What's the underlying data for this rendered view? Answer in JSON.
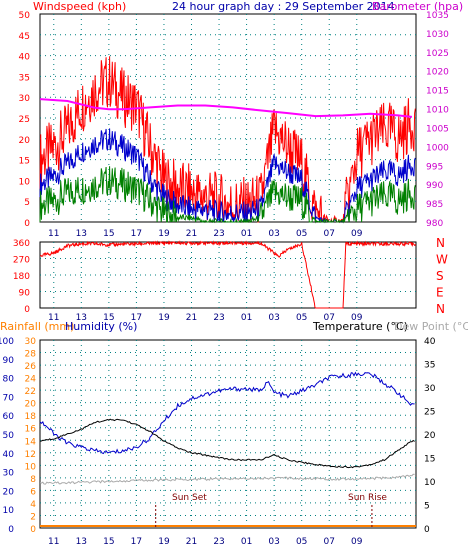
{
  "header": {
    "windspeed_label": "Windspeed (kph)",
    "graph_title": "24 hour graph day : 29 September 2014",
    "barometer_label": "Barometer (hpa)"
  },
  "bottom_header": {
    "rainfall_label": "Rainfall (mm)",
    "humidity_label": "Humidity (%)",
    "temperature_label": "Temperature (°C)",
    "dewpoint_label": "Dew Point (°C)"
  },
  "annotations": {
    "sun_set": "Sun Set",
    "sun_rise": "Sun Rise"
  },
  "colors": {
    "gust": "#ff0000",
    "average": "#0000cc",
    "wind_low": "#008000",
    "barometer": "#ff00ff",
    "direction": "#ff0000",
    "humidity": "#0000cc",
    "temperature": "#000000",
    "dewpoint": "#aaaaaa",
    "rain": "#ff8000",
    "left_axis": "#ff0000",
    "right_axis": "#cc00cc",
    "blue_axis": "#0000aa",
    "temp_axis": "#000000",
    "grid": "#008080"
  },
  "chart_data": [
    {
      "type": "line",
      "title": "24 hour graph day : 29 September 2014",
      "x_hours": [
        "11",
        "13",
        "15",
        "17",
        "19",
        "21",
        "23",
        "01",
        "03",
        "05",
        "07",
        "09"
      ],
      "ylabel_left": "Windspeed (kph)",
      "ylabel_right": "Barometer (hpa)",
      "ylim_left": [
        0,
        50
      ],
      "ylim_right": [
        980,
        1035
      ],
      "yticks_left": [
        "0",
        "5",
        "10",
        "15",
        "20",
        "25",
        "30",
        "35",
        "40",
        "45",
        "50"
      ],
      "yticks_right": [
        "980",
        "985",
        "990",
        "995",
        "1000",
        "1005",
        "1010",
        "1015",
        "1020",
        "1025",
        "1030",
        "1035"
      ],
      "series": [
        {
          "name": "Windspeed (kph)",
          "kind": "gust",
          "x": [
            10,
            11,
            12,
            13,
            14,
            15,
            16,
            17,
            18,
            19,
            20,
            21,
            22,
            23,
            24,
            25,
            26,
            27,
            28,
            29,
            30,
            31,
            32,
            33,
            34,
            35,
            35.5,
            36,
            37
          ],
          "values": [
            15,
            18,
            22,
            28,
            32,
            34,
            30,
            28,
            18,
            10,
            8,
            7,
            6,
            5,
            4,
            4,
            5,
            22,
            18,
            14,
            2,
            0,
            0,
            16,
            20,
            22,
            22,
            20,
            24
          ]
        },
        {
          "name": "average",
          "kind": "average",
          "x": [
            10,
            11,
            12,
            13,
            14,
            15,
            16,
            17,
            18,
            19,
            20,
            21,
            22,
            23,
            24,
            25,
            26,
            27,
            28,
            29,
            30,
            31,
            32,
            33,
            34,
            35,
            35.5,
            36,
            37
          ],
          "values": [
            9,
            11,
            14,
            17,
            19,
            20,
            18,
            16,
            10,
            6,
            4,
            3,
            3,
            2,
            2,
            2,
            3,
            14,
            12,
            10,
            1,
            0,
            0,
            8,
            10,
            12,
            12,
            11,
            14
          ]
        },
        {
          "name": "low",
          "kind": "low",
          "x": [
            10,
            11,
            12,
            13,
            14,
            15,
            16,
            17,
            18,
            19,
            20,
            21,
            22,
            23,
            24,
            25,
            26,
            27,
            28,
            29,
            30,
            31,
            32,
            33,
            34,
            35,
            35.5,
            36,
            37
          ],
          "values": [
            4,
            5,
            7,
            8,
            9,
            10,
            9,
            8,
            5,
            2,
            1,
            1,
            0,
            0,
            0,
            0,
            1,
            7,
            6,
            5,
            0,
            0,
            0,
            3,
            5,
            6,
            6,
            5,
            7
          ]
        },
        {
          "name": "Barometer (hpa)",
          "axis": "right",
          "x": [
            10,
            12,
            14,
            15,
            16,
            18,
            20,
            22,
            24,
            26,
            28,
            30,
            32,
            34,
            36,
            37
          ],
          "values": [
            1012.5,
            1012,
            1010.2,
            1009.8,
            1009.8,
            1010.3,
            1010.8,
            1010.8,
            1010.3,
            1009.5,
            1008.8,
            1008,
            1008.2,
            1008.6,
            1008.2,
            1007.8
          ]
        }
      ]
    },
    {
      "type": "line",
      "title": "",
      "ylabel_right": [
        "N",
        "W",
        "S",
        "E",
        "N"
      ],
      "ylim": [
        0,
        360
      ],
      "yticks": [
        "0",
        "90",
        "180",
        "270",
        "360"
      ],
      "series": [
        {
          "name": "direction",
          "x": [
            10,
            11,
            12,
            13,
            14,
            15,
            16,
            17,
            18,
            19,
            20,
            21,
            22,
            23,
            24,
            25,
            26,
            27,
            27.3,
            28,
            29,
            30,
            31,
            32,
            32.2,
            33,
            34,
            35,
            36,
            37
          ],
          "values": [
            285,
            300,
            340,
            350,
            350,
            345,
            348,
            350,
            352,
            355,
            355,
            355,
            355,
            355,
            355,
            355,
            355,
            300,
            280,
            320,
            350,
            0,
            0,
            0,
            350,
            350,
            350,
            350,
            350,
            350
          ]
        }
      ]
    },
    {
      "type": "line",
      "title": "",
      "ylabel_left_1": "Rainfall (mm)",
      "ylabel_left_2": "Humidity (%)",
      "ylabel_right": "Temperature (°C)",
      "ylabel_right_2": "Dew Point (°C)",
      "ylim_humidity": [
        0,
        100
      ],
      "ylim_rain": [
        0,
        30
      ],
      "ylim_temperature": [
        0,
        40
      ],
      "yticks_humidity": [
        "0",
        "10",
        "20",
        "30",
        "40",
        "50",
        "60",
        "70",
        "80",
        "90",
        "100"
      ],
      "yticks_rain": [
        "0",
        "2",
        "4",
        "6",
        "8",
        "10",
        "12",
        "14",
        "16",
        "18",
        "20",
        "22",
        "24",
        "26",
        "28",
        "30"
      ],
      "yticks_temperature": [
        "0",
        "5",
        "10",
        "15",
        "20",
        "25",
        "30",
        "35",
        "40"
      ],
      "series": [
        {
          "name": "Humidity (%)",
          "axis": "humidity",
          "x": [
            10,
            10.5,
            11,
            12,
            13,
            14,
            15,
            16,
            17,
            18,
            19,
            20,
            21,
            22,
            23,
            24,
            25,
            26,
            26.5,
            27,
            28,
            29,
            30,
            31,
            32,
            33,
            34,
            35,
            36,
            37
          ],
          "values": [
            57,
            54,
            50,
            45,
            43,
            41,
            40,
            41,
            43,
            48,
            57,
            65,
            69,
            71,
            73,
            74,
            74,
            73,
            78,
            72,
            70,
            73,
            76,
            80,
            81,
            82,
            82,
            77,
            72,
            65
          ]
        },
        {
          "name": "Temperature (°C)",
          "axis": "temperature",
          "x": [
            10,
            11,
            12,
            13,
            14,
            15,
            16,
            17,
            18,
            19,
            20,
            21,
            22,
            23,
            24,
            25,
            26,
            27,
            27.5,
            28,
            29,
            30,
            31,
            32,
            33,
            34,
            35,
            36,
            37
          ],
          "values": [
            18.5,
            19,
            20,
            21,
            22.5,
            23,
            23,
            22,
            20.5,
            18.5,
            17,
            16,
            15.5,
            15,
            14.5,
            14.5,
            14.5,
            15.5,
            15,
            14.5,
            14,
            13.5,
            13.2,
            13,
            13,
            13.5,
            14.5,
            16.5,
            18.5
          ]
        },
        {
          "name": "Dew Point (°C)",
          "axis": "temperature",
          "x": [
            10,
            12,
            14,
            16,
            18,
            20,
            22,
            24,
            26,
            28,
            30,
            32,
            34,
            36,
            37
          ],
          "values": [
            9.5,
            9.6,
            9.8,
            10,
            10.2,
            10.3,
            10.4,
            10.5,
            10.6,
            10.6,
            10.5,
            10.4,
            10.5,
            10.8,
            11.2
          ]
        },
        {
          "name": "Rainfall (mm)",
          "axis": "rain",
          "x": [
            10,
            37
          ],
          "values": [
            0,
            0
          ]
        }
      ]
    }
  ]
}
